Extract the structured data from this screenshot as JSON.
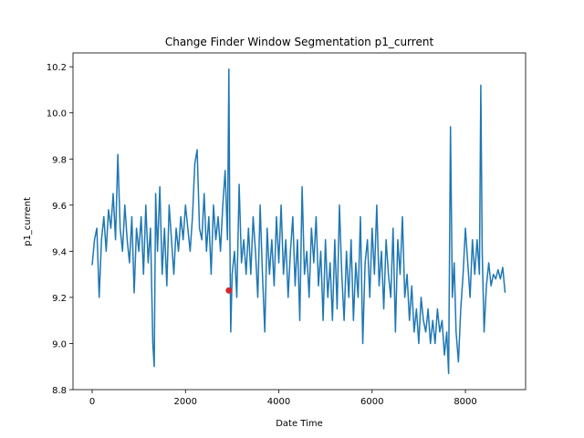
{
  "chart_data": {
    "type": "line",
    "title": "Change Finder Window Segmentation p1_current",
    "xlabel": "Date Time",
    "ylabel": "p1_current",
    "x": [
      0,
      50,
      100,
      150,
      200,
      250,
      300,
      350,
      400,
      450,
      500,
      550,
      600,
      650,
      700,
      750,
      800,
      850,
      900,
      950,
      1000,
      1050,
      1100,
      1150,
      1200,
      1250,
      1300,
      1330,
      1360,
      1400,
      1450,
      1500,
      1550,
      1600,
      1650,
      1700,
      1750,
      1800,
      1850,
      1900,
      1950,
      2000,
      2050,
      2100,
      2150,
      2200,
      2250,
      2300,
      2350,
      2400,
      2450,
      2500,
      2550,
      2600,
      2650,
      2700,
      2750,
      2800,
      2850,
      2900,
      2930,
      2950,
      2970,
      3000,
      3050,
      3100,
      3150,
      3200,
      3250,
      3300,
      3350,
      3400,
      3450,
      3500,
      3550,
      3600,
      3650,
      3700,
      3750,
      3800,
      3850,
      3900,
      3950,
      4000,
      4050,
      4100,
      4150,
      4200,
      4250,
      4300,
      4350,
      4400,
      4450,
      4500,
      4550,
      4600,
      4650,
      4700,
      4750,
      4800,
      4850,
      4900,
      4950,
      5000,
      5050,
      5100,
      5150,
      5200,
      5250,
      5300,
      5350,
      5400,
      5450,
      5500,
      5550,
      5600,
      5650,
      5700,
      5750,
      5800,
      5850,
      5900,
      5950,
      6000,
      6050,
      6100,
      6150,
      6200,
      6250,
      6300,
      6350,
      6400,
      6450,
      6500,
      6550,
      6600,
      6650,
      6700,
      6750,
      6800,
      6850,
      6900,
      6950,
      7000,
      7050,
      7100,
      7150,
      7200,
      7250,
      7300,
      7350,
      7400,
      7450,
      7500,
      7550,
      7600,
      7640,
      7680,
      7720,
      7760,
      7800,
      7850,
      7900,
      7950,
      8000,
      8050,
      8100,
      8150,
      8200,
      8250,
      8300,
      8330,
      8360,
      8400,
      8450,
      8500,
      8550,
      8600,
      8650,
      8700,
      8750,
      8800,
      8850
    ],
    "series": [
      {
        "color": "#1f77b4",
        "values": [
          9.34,
          9.45,
          9.5,
          9.2,
          9.45,
          9.55,
          9.4,
          9.58,
          9.5,
          9.65,
          9.45,
          9.82,
          9.5,
          9.4,
          9.6,
          9.45,
          9.35,
          9.55,
          9.22,
          9.5,
          9.4,
          9.55,
          9.3,
          9.6,
          9.35,
          9.5,
          9.0,
          8.9,
          9.65,
          9.4,
          9.68,
          9.3,
          9.5,
          9.25,
          9.6,
          9.45,
          9.3,
          9.5,
          9.4,
          9.55,
          9.45,
          9.6,
          9.5,
          9.4,
          9.55,
          9.78,
          9.84,
          9.5,
          9.45,
          9.65,
          9.4,
          9.55,
          9.3,
          9.6,
          9.45,
          9.55,
          9.4,
          9.6,
          9.75,
          9.45,
          10.19,
          9.5,
          9.05,
          9.3,
          9.4,
          9.2,
          9.69,
          9.35,
          9.45,
          9.3,
          9.5,
          9.3,
          9.55,
          9.4,
          9.2,
          9.6,
          9.3,
          9.05,
          9.5,
          9.3,
          9.45,
          9.25,
          9.55,
          9.35,
          9.6,
          9.3,
          9.45,
          9.2,
          9.4,
          9.55,
          9.25,
          9.45,
          9.1,
          9.68,
          9.3,
          9.4,
          9.2,
          9.5,
          9.35,
          9.55,
          9.25,
          9.4,
          9.1,
          9.45,
          9.2,
          9.35,
          9.1,
          9.45,
          9.15,
          9.6,
          9.3,
          9.1,
          9.4,
          9.2,
          9.45,
          9.1,
          9.35,
          9.2,
          9.55,
          9.0,
          9.35,
          9.45,
          9.2,
          9.5,
          9.3,
          9.6,
          9.25,
          9.4,
          9.15,
          9.45,
          9.3,
          9.2,
          9.5,
          9.05,
          9.45,
          9.3,
          9.55,
          9.2,
          9.3,
          9.1,
          9.25,
          9.05,
          9.15,
          9.0,
          9.2,
          9.1,
          9.05,
          9.15,
          9.0,
          9.1,
          9.0,
          9.15,
          9.05,
          9.1,
          8.95,
          9.05,
          8.87,
          9.94,
          9.2,
          9.35,
          9.05,
          8.92,
          9.15,
          9.3,
          9.5,
          9.35,
          9.2,
          9.45,
          9.3,
          9.45,
          9.3,
          10.12,
          9.4,
          9.05,
          9.25,
          9.35,
          9.25,
          9.3,
          9.28,
          9.32,
          9.28,
          9.33,
          9.22
        ]
      }
    ],
    "markers": {
      "color": "#d62728",
      "x": [
        2930
      ],
      "y": [
        9.23
      ]
    },
    "xlim": [
      -411,
      9290
    ],
    "ylim": [
      8.8,
      10.26
    ],
    "xticks": [
      0,
      2000,
      4000,
      6000,
      8000
    ],
    "yticks": [
      8.8,
      {
        "value": 9,
        "label": "9.0"
      },
      9.2,
      9.4,
      9.6,
      9.8,
      {
        "value": 10,
        "label": "10.0"
      },
      10.2
    ],
    "grid": false
  }
}
